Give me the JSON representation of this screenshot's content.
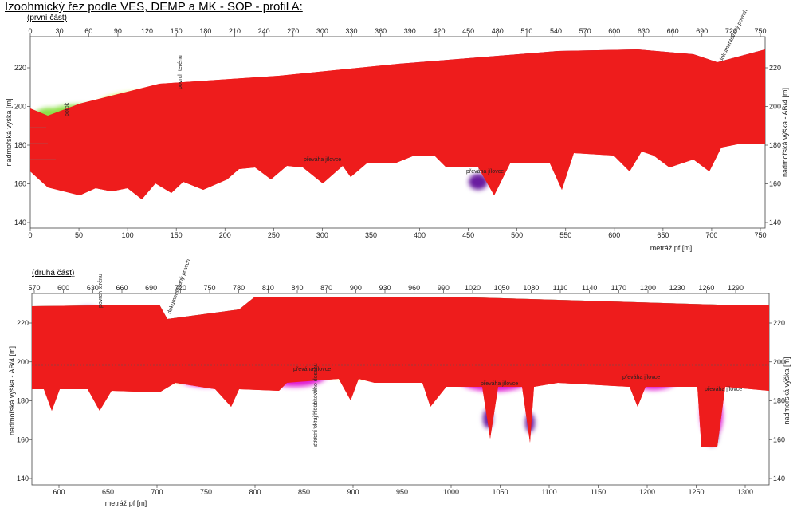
{
  "title": "Izoohmický řez podle VES, DEMP a MK - SOP  - profil A:",
  "panels": [
    {
      "subtitle": "(první část)",
      "top_ticks": [
        "0",
        "30",
        "60",
        "90",
        "120",
        "150",
        "180",
        "210",
        "240",
        "270",
        "300",
        "330",
        "360",
        "390",
        "420",
        "450",
        "480",
        "510",
        "540",
        "570",
        "600",
        "630",
        "660",
        "690",
        "720",
        "750"
      ],
      "bottom_ticks": [
        "0",
        "50",
        "100",
        "150",
        "200",
        "250",
        "300",
        "350",
        "400",
        "450",
        "500",
        "550",
        "600",
        "650",
        "700",
        "750"
      ],
      "y_ticks": [
        "140",
        "160",
        "180",
        "200",
        "220"
      ],
      "ylabel_left": "nadmořská výška [m]",
      "ylabel_right": "nadmořská výška - AB/4 [m]",
      "xlabel": "metráž pf [m]",
      "annotations": [
        "převáha jílovce",
        "převáha jílovce",
        "potok",
        "povrch terénu",
        "dokumentovaný povrch"
      ]
    },
    {
      "subtitle": "(druhá část)",
      "top_ticks": [
        "570",
        "600",
        "630",
        "660",
        "690",
        "720",
        "750",
        "780",
        "810",
        "840",
        "870",
        "900",
        "930",
        "960",
        "990",
        "1020",
        "1050",
        "1080",
        "1110",
        "1140",
        "1170",
        "1200",
        "1230",
        "1260",
        "1290"
      ],
      "bottom_ticks": [
        "600",
        "650",
        "700",
        "750",
        "800",
        "850",
        "900",
        "950",
        "1000",
        "1050",
        "1100",
        "1150",
        "1200",
        "1250",
        "1300"
      ],
      "y_ticks": [
        "140",
        "160",
        "180",
        "200",
        "220"
      ],
      "ylabel_left": "nadmořská výška - AB/4 [m]",
      "ylabel_right": "nadmořská výška [m]",
      "xlabel": "metráž pf [m]",
      "annotations": [
        "převáha jílovce",
        "převáha jílovce",
        "převáha jílovce",
        "převáha jílovce",
        "spodní okraj hloubkového dosahu",
        "povrch terénu",
        "dokumentovaný povrch"
      ]
    }
  ],
  "colors": {
    "frame": "#444444",
    "blue": "#2a5bd7",
    "cyan": "#38c8d8",
    "green": "#8de04a",
    "lime": "#d6f04a",
    "yellow": "#f6ec3c",
    "orange": "#f59a1c",
    "red": "#ee1c1c",
    "magenta": "#e01cd2",
    "purple": "#6a1aa0"
  }
}
